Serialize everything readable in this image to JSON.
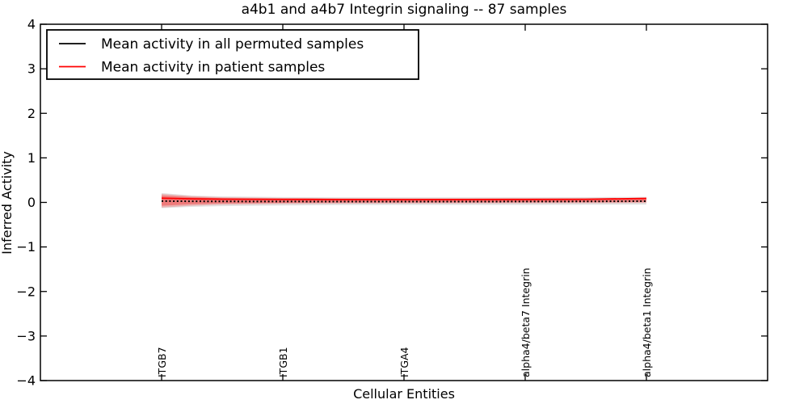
{
  "chart_data": {
    "type": "line",
    "title": "a4b1 and a4b7 Integrin signaling -- 87 samples",
    "xlabel": "Cellular Entities",
    "ylabel": "Inferred Activity",
    "xlim": [
      -1,
      5
    ],
    "ylim": [
      -4,
      4
    ],
    "grid": false,
    "yticks": [
      4,
      3,
      2,
      1,
      0,
      -1,
      -2,
      -3,
      -4
    ],
    "ytick_labels": [
      "4",
      "3",
      "2",
      "1",
      "0",
      "−1",
      "−2",
      "−3",
      "−4"
    ],
    "categories": [
      "ITGB7",
      "ITGB1",
      "ITGA4",
      "alpha4/beta7 Integrin",
      "alpha4/beta1 Integrin"
    ],
    "category_x": [
      0,
      1,
      2,
      3,
      4
    ],
    "legend": {
      "position": "upper left",
      "entries": [
        "Mean activity in all permuted samples",
        "Mean activity in patient samples"
      ]
    },
    "series": [
      {
        "name": "Mean activity in all permuted samples",
        "color": "#000000",
        "line_style": "dotted",
        "x": [
          0,
          0.25,
          0.5,
          1,
          1.5,
          2,
          2.5,
          3,
          3.5,
          4
        ],
        "y": [
          0.03,
          0.025,
          0.022,
          0.02,
          0.018,
          0.017,
          0.018,
          0.02,
          0.022,
          0.028
        ],
        "band": {
          "color": "rgba(0,0,0,0.11)",
          "upper": [
            0.21,
            0.155,
            0.135,
            0.12,
            0.115,
            0.115,
            0.115,
            0.115,
            0.118,
            0.125
          ],
          "lower": [
            -0.13,
            -0.1,
            -0.085,
            -0.07,
            -0.062,
            -0.06,
            -0.06,
            -0.058,
            -0.055,
            -0.05
          ]
        }
      },
      {
        "name": "Mean activity in patient samples",
        "color": "#ff0000",
        "line_style": "solid",
        "x": [
          0,
          0.25,
          0.5,
          1,
          1.5,
          2,
          2.5,
          3,
          3.5,
          4
        ],
        "y": [
          0.095,
          0.08,
          0.072,
          0.068,
          0.065,
          0.064,
          0.065,
          0.067,
          0.07,
          0.09
        ],
        "band": {
          "color": "rgba(255,0,0,0.22)",
          "upper": [
            0.19,
            0.14,
            0.115,
            0.1,
            0.092,
            0.09,
            0.09,
            0.09,
            0.092,
            0.1
          ],
          "lower": [
            -0.115,
            -0.075,
            -0.05,
            -0.035,
            -0.028,
            -0.025,
            -0.023,
            -0.02,
            -0.018,
            -0.012
          ]
        },
        "band_inner": {
          "color": "rgba(255,0,0,0.30)",
          "upper": [
            0.155,
            0.115,
            0.095,
            0.085,
            0.08,
            0.078,
            0.078,
            0.078,
            0.08,
            0.088
          ],
          "lower": [
            -0.075,
            -0.04,
            -0.02,
            -0.008,
            0.0,
            0.002,
            0.004,
            0.006,
            0.008,
            0.015
          ]
        }
      }
    ]
  }
}
